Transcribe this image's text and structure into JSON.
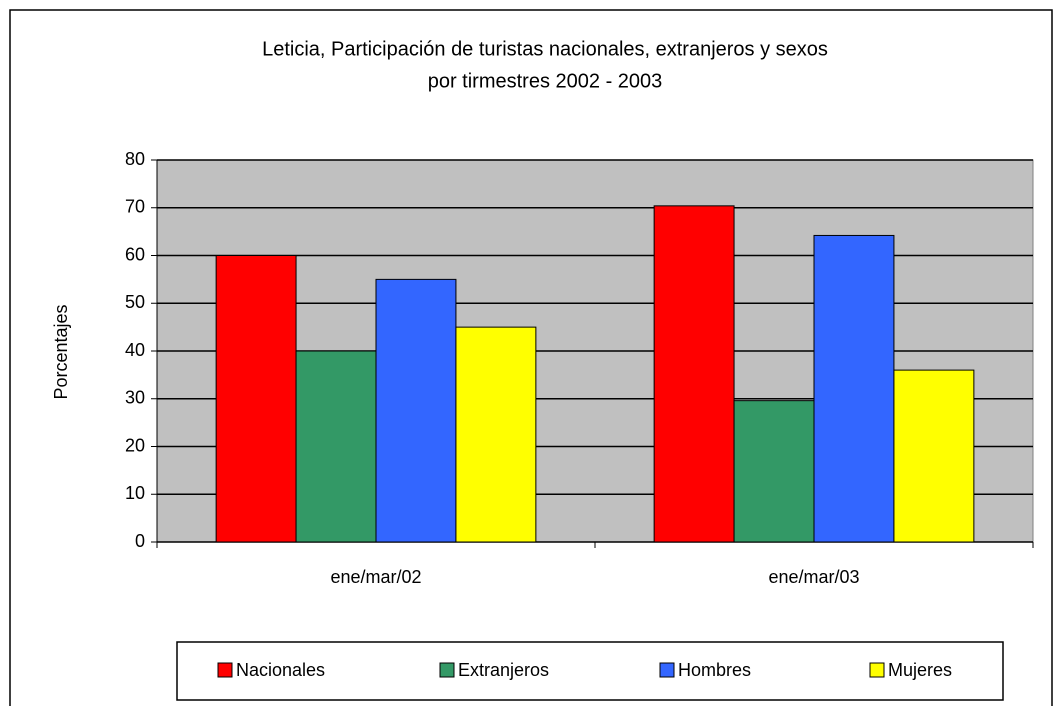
{
  "chart_data": {
    "type": "bar",
    "title": [
      "Leticia, Participación de turistas nacionales, extranjeros y sexos",
      "por tirmestres 2002 - 2003"
    ],
    "y_label": "Porcentajes",
    "categories": [
      "ene/mar/02",
      "ene/mar/03"
    ],
    "series": [
      {
        "name": "Nacionales",
        "color": "#ff0000",
        "values": [
          60,
          70.4
        ]
      },
      {
        "name": "Extranjeros",
        "color": "#339966",
        "values": [
          40,
          29.6
        ]
      },
      {
        "name": "Hombres",
        "color": "#3366ff",
        "values": [
          55,
          64.2
        ]
      },
      {
        "name": "Mujeres",
        "color": "#ffff00",
        "values": [
          45,
          36
        ]
      }
    ],
    "ylim": [
      0,
      80
    ],
    "yticks": [
      0,
      10,
      20,
      30,
      40,
      50,
      60,
      70,
      80
    ],
    "grid": true,
    "legend": "bottom"
  }
}
